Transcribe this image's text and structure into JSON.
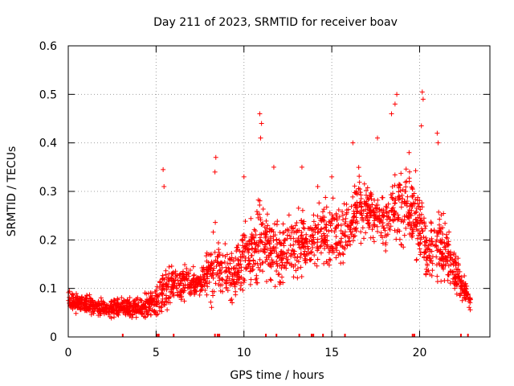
{
  "chart_data": {
    "type": "scatter",
    "title": "Day 211 of 2023, SRMTID for receiver boav",
    "xlabel": "GPS time / hours",
    "ylabel": "SRMTID / TECUs",
    "xlim": [
      0,
      24
    ],
    "ylim": [
      0,
      0.6
    ],
    "x_ticks": [
      0,
      5,
      10,
      15,
      20
    ],
    "x_tick_labels": [
      "0",
      "5",
      "10",
      "15",
      "20"
    ],
    "y_ticks": [
      0,
      0.1,
      0.2,
      0.3,
      0.4,
      0.5,
      0.6
    ],
    "y_tick_labels": [
      "0",
      "0.1",
      "0.2",
      "0.3",
      "0.4",
      "0.5",
      "0.6"
    ],
    "grid": true,
    "marker": "+",
    "series_color": "#ff0000",
    "envelope": {
      "x": [
        0.0,
        0.5,
        1.0,
        1.5,
        2.0,
        2.5,
        3.0,
        3.5,
        4.0,
        4.5,
        5.0,
        5.2,
        5.5,
        6.0,
        6.5,
        7.0,
        7.5,
        8.0,
        8.3,
        8.6,
        9.0,
        9.5,
        10.0,
        10.5,
        11.0,
        11.5,
        12.0,
        12.5,
        13.0,
        13.5,
        14.0,
        14.5,
        15.0,
        15.5,
        16.0,
        16.5,
        17.0,
        17.5,
        18.0,
        18.5,
        19.0,
        19.5,
        20.0,
        20.5,
        21.0,
        21.5,
        22.0,
        22.5,
        22.9
      ],
      "mean": [
        0.075,
        0.07,
        0.065,
        0.065,
        0.06,
        0.06,
        0.06,
        0.06,
        0.06,
        0.065,
        0.07,
        0.085,
        0.1,
        0.11,
        0.11,
        0.11,
        0.11,
        0.13,
        0.16,
        0.15,
        0.12,
        0.13,
        0.17,
        0.18,
        0.2,
        0.17,
        0.17,
        0.19,
        0.19,
        0.2,
        0.2,
        0.21,
        0.22,
        0.21,
        0.23,
        0.27,
        0.26,
        0.25,
        0.24,
        0.26,
        0.28,
        0.27,
        0.23,
        0.17,
        0.2,
        0.17,
        0.14,
        0.1,
        0.07
      ],
      "spread": [
        0.02,
        0.02,
        0.02,
        0.02,
        0.02,
        0.02,
        0.02,
        0.02,
        0.02,
        0.025,
        0.03,
        0.05,
        0.05,
        0.04,
        0.04,
        0.03,
        0.03,
        0.05,
        0.09,
        0.07,
        0.06,
        0.06,
        0.07,
        0.07,
        0.09,
        0.06,
        0.07,
        0.06,
        0.07,
        0.07,
        0.07,
        0.07,
        0.07,
        0.06,
        0.06,
        0.07,
        0.06,
        0.06,
        0.06,
        0.07,
        0.09,
        0.08,
        0.08,
        0.06,
        0.08,
        0.06,
        0.05,
        0.03,
        0.015
      ]
    },
    "point_count": 2200,
    "peaks": [
      {
        "x": 5.4,
        "y": 0.345
      },
      {
        "x": 5.45,
        "y": 0.31
      },
      {
        "x": 8.4,
        "y": 0.37
      },
      {
        "x": 8.35,
        "y": 0.34
      },
      {
        "x": 10.0,
        "y": 0.33
      },
      {
        "x": 10.9,
        "y": 0.46
      },
      {
        "x": 11.0,
        "y": 0.44
      },
      {
        "x": 10.95,
        "y": 0.41
      },
      {
        "x": 11.7,
        "y": 0.35
      },
      {
        "x": 13.3,
        "y": 0.35
      },
      {
        "x": 14.2,
        "y": 0.31
      },
      {
        "x": 16.2,
        "y": 0.4
      },
      {
        "x": 17.6,
        "y": 0.41
      },
      {
        "x": 18.4,
        "y": 0.46
      },
      {
        "x": 18.7,
        "y": 0.5
      },
      {
        "x": 18.6,
        "y": 0.48
      },
      {
        "x": 20.15,
        "y": 0.505
      },
      {
        "x": 20.2,
        "y": 0.49
      },
      {
        "x": 20.1,
        "y": 0.435
      },
      {
        "x": 21.0,
        "y": 0.42
      },
      {
        "x": 21.05,
        "y": 0.4
      },
      {
        "x": 19.4,
        "y": 0.38
      },
      {
        "x": 15.0,
        "y": 0.33
      }
    ],
    "rug_x": [
      3.1,
      5.05,
      5.15,
      6.0,
      8.35,
      8.5,
      8.6,
      11.25,
      11.85,
      13.15,
      13.85,
      13.95,
      14.5,
      15.75,
      19.6,
      19.7,
      22.35,
      22.75
    ]
  }
}
